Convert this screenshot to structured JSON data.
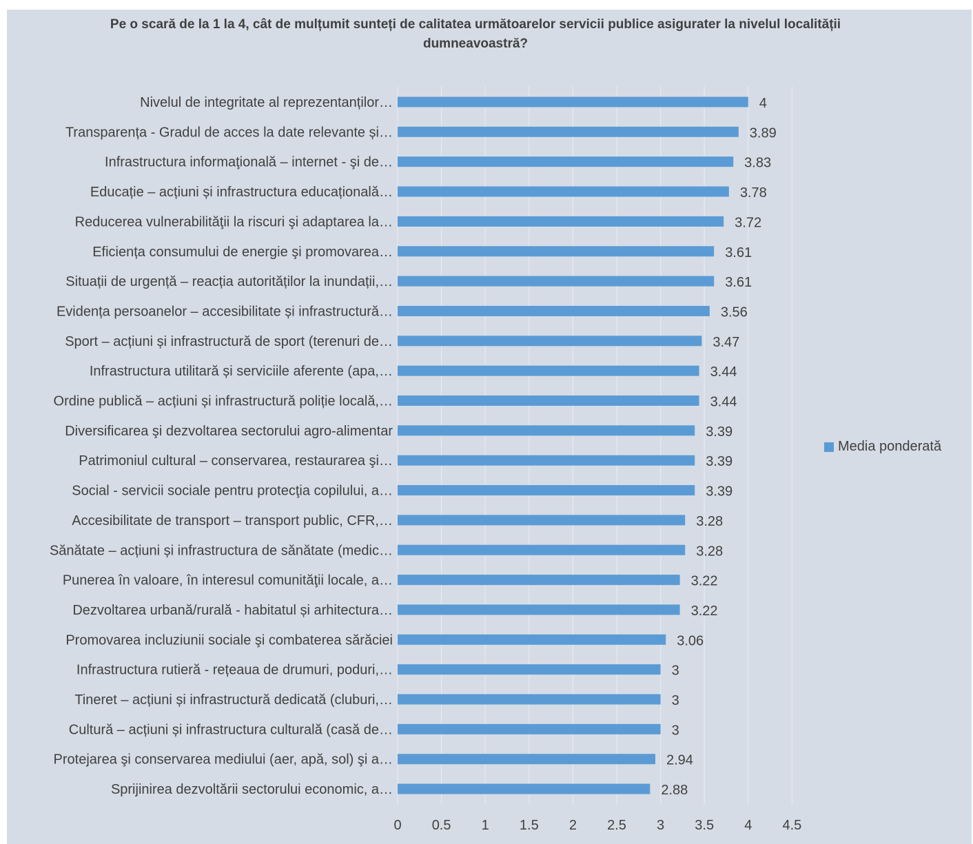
{
  "chart_data": {
    "type": "bar",
    "orientation": "horizontal",
    "title": "Pe o scară de la 1 la 4, cât de mulțumit sunteți de calitatea următoarelor servicii publice asigurater la nivelul localității dumneavoastră?",
    "categories": [
      "Nivelul de integritate al reprezentanților…",
      "Transparența - Gradul de acces la date relevante și…",
      "Infrastructura informaţională – internet - şi de…",
      "Educație – acțiuni și infrastructura educațională…",
      "Reducerea vulnerabilităţii la riscuri şi adaptarea la…",
      "Eficiența consumului de energie şi promovarea…",
      "Situații de urgență – reacția autorităților la inundații,…",
      "Evidența persoanelor – accesibilitate și infrastructură…",
      "Sport – acțiuni și infrastructură de sport (terenuri de…",
      "Infrastructura utilitară și serviciile aferente (apa,…",
      "Ordine publică – acțiuni și infrastructură poliție locală,…",
      "Diversificarea şi dezvoltarea sectorului agro-alimentar",
      "Patrimoniul cultural – conservarea, restaurarea şi…",
      "Social - servicii sociale pentru protecţia copilului, a…",
      "Accesibilitate de transport – transport public, CFR,…",
      "Sănătate – acțiuni și infrastructura de sănătate (medic…",
      "Punerea în valoare, în interesul comunităţii locale, a…",
      "Dezvoltarea urbană/rurală - habitatul și arhitectura…",
      "Promovarea incluziunii sociale şi combaterea sărăciei",
      "Infrastructura rutieră - rețeaua de drumuri, poduri,…",
      "Tineret – acțiuni și infrastructură dedicată (cluburi,…",
      "Cultură – acțiuni și infrastructura culturală (casă de…",
      "Protejarea şi conservarea mediului (aer, apă, sol) şi a…",
      "Sprijinirea dezvoltării sectorului economic, a…"
    ],
    "series": [
      {
        "name": "Media ponderată",
        "values": [
          4,
          3.89,
          3.83,
          3.78,
          3.72,
          3.61,
          3.61,
          3.56,
          3.47,
          3.44,
          3.44,
          3.39,
          3.39,
          3.39,
          3.28,
          3.28,
          3.22,
          3.22,
          3.06,
          3,
          3,
          3,
          2.94,
          2.88
        ],
        "labels": [
          "4",
          "3.89",
          "3.83",
          "3.78",
          "3.72",
          "3.61",
          "3.61",
          "3.56",
          "3.47",
          "3.44",
          "3.44",
          "3.39",
          "3.39",
          "3.39",
          "3.28",
          "3.28",
          "3.22",
          "3.22",
          "3.06",
          "3",
          "3",
          "3",
          "2.94",
          "2.88"
        ],
        "color": "#5b9bd5"
      }
    ],
    "xlim": [
      0,
      4.5
    ],
    "xticks": [
      "0",
      "0.5",
      "1",
      "1.5",
      "2",
      "2.5",
      "3",
      "3.5",
      "4",
      "4.5"
    ],
    "xtick_values": [
      0,
      0.5,
      1,
      1.5,
      2,
      2.5,
      3,
      3.5,
      4,
      4.5
    ],
    "grid": true,
    "legend": "right",
    "colors": {
      "background": "#d6dce5",
      "gridline": "#e8ecf2",
      "text": "#404040"
    }
  }
}
